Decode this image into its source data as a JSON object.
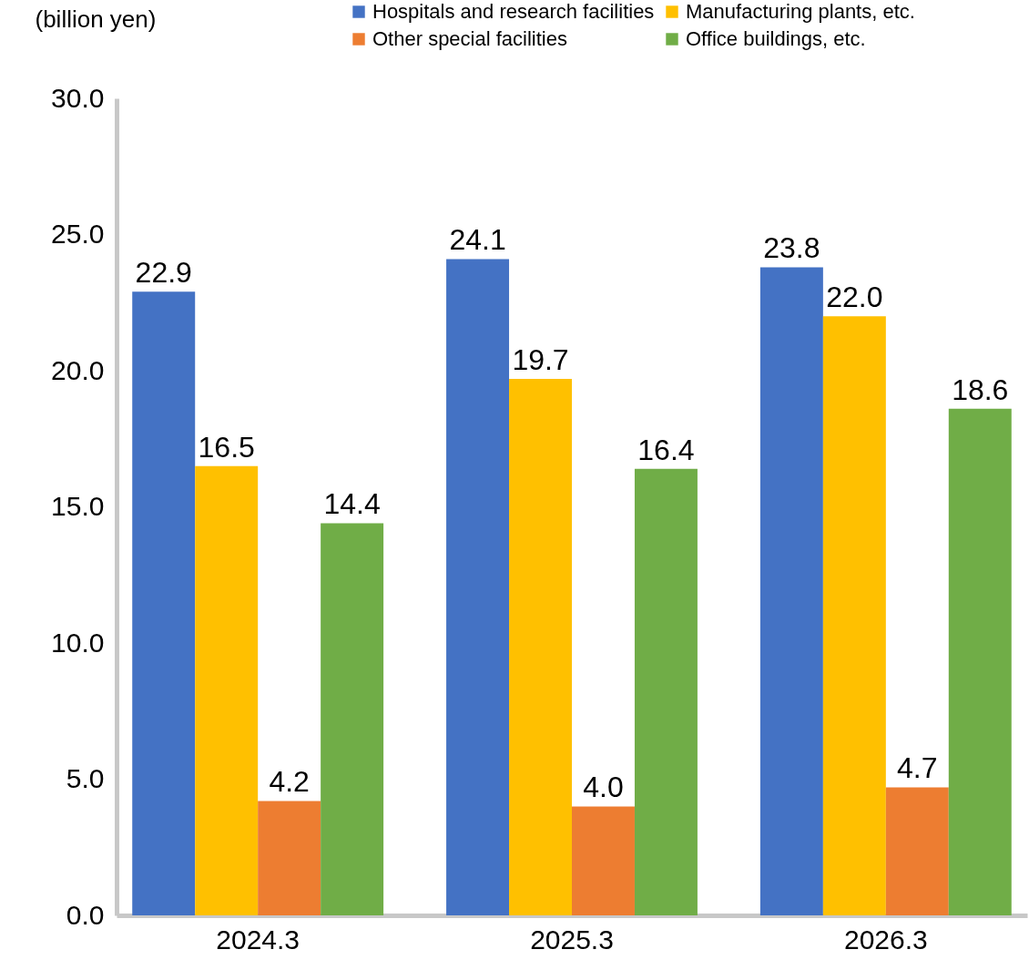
{
  "chart_data": {
    "type": "bar",
    "ylabel": "(billion yen)",
    "categories": [
      "2024.3",
      "2025.3",
      "2026.3"
    ],
    "series": [
      {
        "name": "Hospitals and research facilities",
        "color": "#4472c4",
        "values": [
          22.9,
          24.1,
          23.8
        ],
        "value_labels": [
          "22.9",
          "24.1",
          "23.8"
        ]
      },
      {
        "name": "Manufacturing plants, etc.",
        "color": "#ffc000",
        "values": [
          16.5,
          19.7,
          22.0
        ],
        "value_labels": [
          "16.5",
          "19.7",
          "22.0"
        ]
      },
      {
        "name": "Other special facilities",
        "color": "#ed7d31",
        "values": [
          4.2,
          4.0,
          4.7
        ],
        "value_labels": [
          "4.2",
          "4.0",
          "4.7"
        ]
      },
      {
        "name": "Office buildings, etc.",
        "color": "#70ad47",
        "values": [
          14.4,
          16.4,
          18.6
        ],
        "value_labels": [
          "14.4",
          "16.4",
          "18.6"
        ]
      }
    ],
    "ylim": [
      0,
      30
    ],
    "yticks": [
      {
        "value": 0,
        "label": "0.0"
      },
      {
        "value": 5,
        "label": "5.0"
      },
      {
        "value": 10,
        "label": "10.0"
      },
      {
        "value": 15,
        "label": "15.0"
      },
      {
        "value": 20,
        "label": "20.0"
      },
      {
        "value": 25,
        "label": "25.0"
      },
      {
        "value": 30,
        "label": "30.0"
      }
    ],
    "grid": false,
    "legend": "top right"
  }
}
